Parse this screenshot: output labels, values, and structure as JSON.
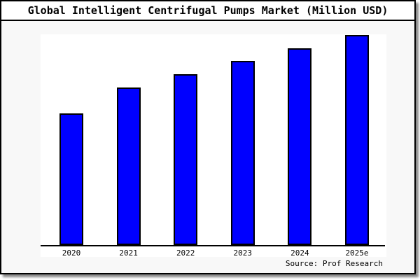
{
  "header": {
    "title": "Global Intelligent Centrifugal Pumps Market (Million USD)"
  },
  "footer": {
    "source": "Source: Prof Research"
  },
  "colors": {
    "bar_fill": "#0000ff",
    "bar_border": "#000000",
    "canvas_background": "#f8f8f8",
    "plot_background": "#ffffff",
    "frame_border": "#000000",
    "shadow": "#8a8a8a"
  },
  "chart_data": {
    "type": "bar",
    "title": "Global Intelligent Centrifugal Pumps Market (Million USD)",
    "categories": [
      "2020",
      "2021",
      "2022",
      "2023",
      "2024",
      "2025e"
    ],
    "values": [
      188,
      225,
      244,
      263,
      281,
      300
    ],
    "values_unit": "bar-height-px (chart displays no y-axis, gridlines or value labels)",
    "xlabel": "",
    "ylabel": "",
    "y_axis_visible": false,
    "grid": false,
    "legend": false,
    "bar_color": "#0000ff",
    "bar_border_color": "#000000",
    "source": "Source: Prof Research"
  }
}
